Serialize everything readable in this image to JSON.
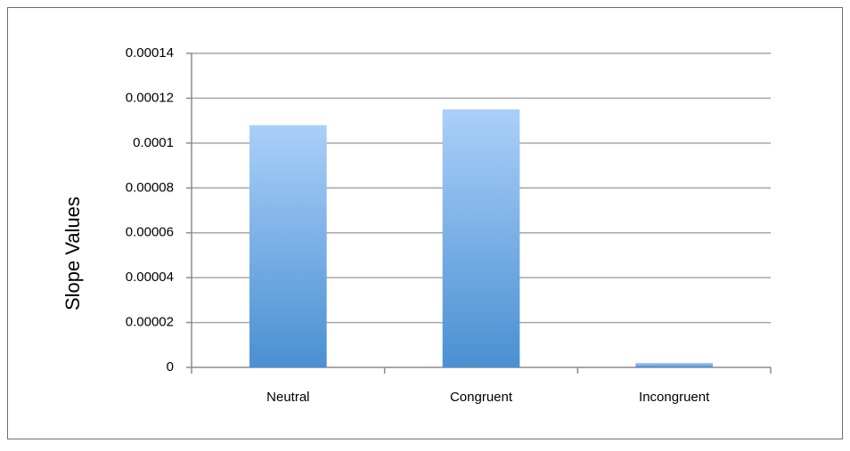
{
  "chart_data": {
    "type": "bar",
    "y_label": "Slope Values",
    "categories": [
      "Neutral",
      "Congruent",
      "Incongruent"
    ],
    "values": [
      0.000108,
      0.000115,
      2e-06
    ],
    "gradient": [
      "#aacff9",
      "#4a90d2"
    ],
    "ylim": [
      0,
      0.00014
    ],
    "yticks": [
      0,
      2e-05,
      4e-05,
      6e-05,
      8e-05,
      0.0001,
      0.00012,
      0.00014
    ],
    "grid": true
  }
}
